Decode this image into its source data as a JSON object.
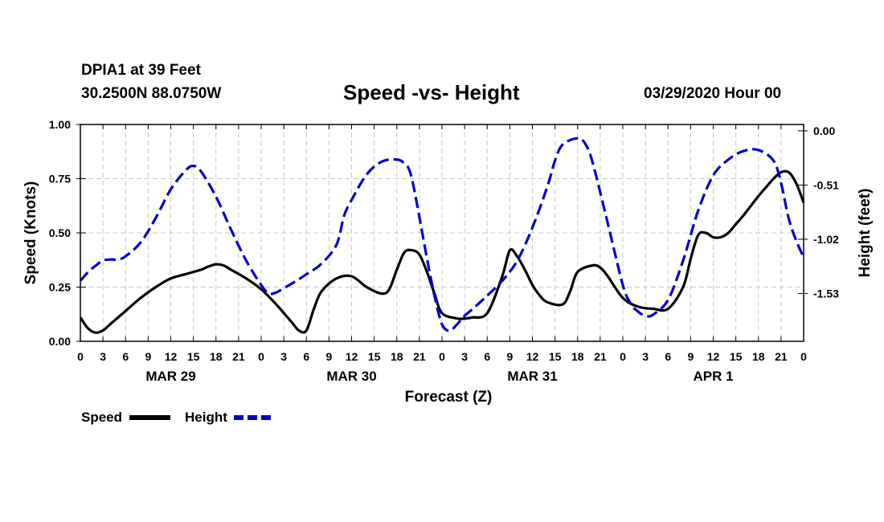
{
  "header": {
    "station": "DPIA1 at 39 Feet",
    "coords": "30.2500N 88.0750W",
    "title": "Speed -vs- Height",
    "run": "03/29/2020 Hour 00"
  },
  "chart_data": {
    "type": "line",
    "title": "Speed -vs- Height",
    "xlabel": "Forecast (Z)",
    "ylabel_left": "Speed (Knots)",
    "ylabel_right": "Height (feet)",
    "x_range_hours": [
      0,
      96
    ],
    "ylim_left": [
      0,
      1
    ],
    "ylim_right": [
      -1.98,
      0.06
    ],
    "left_ticks": [
      "0.00",
      "0.25",
      "0.50",
      "0.75",
      "1.00"
    ],
    "right_ticks": [
      {
        "label": "0.00",
        "value": 0.0
      },
      {
        "label": "-0.51",
        "value": -0.51
      },
      {
        "label": "-1.02",
        "value": -1.02
      },
      {
        "label": "-1.53",
        "value": -1.53
      }
    ],
    "x_tick_labels": [
      "0",
      "3",
      "6",
      "9",
      "12",
      "15",
      "18",
      "21",
      "0",
      "3",
      "6",
      "9",
      "12",
      "15",
      "18",
      "21",
      "0",
      "3",
      "6",
      "9",
      "12",
      "15",
      "18",
      "21",
      "0",
      "3",
      "6",
      "9",
      "12",
      "15",
      "18",
      "21",
      "0"
    ],
    "day_labels": [
      {
        "label": "MAR 29",
        "hour": 12
      },
      {
        "label": "MAR 30",
        "hour": 36
      },
      {
        "label": "MAR 31",
        "hour": 60
      },
      {
        "label": "APR 1",
        "hour": 84
      }
    ],
    "grid": true,
    "legend_position": "bottom-left",
    "series": [
      {
        "name": "Speed",
        "axis": "left",
        "color": "#000000",
        "style": "solid",
        "x": [
          0,
          1,
          2,
          3,
          4,
          6,
          8,
          10,
          12,
          14,
          16,
          17,
          18,
          19,
          20,
          22,
          24,
          26,
          28,
          29,
          30,
          31,
          32,
          34,
          36,
          38,
          40,
          41,
          42,
          43,
          44,
          45,
          46,
          47,
          48,
          50,
          51,
          52,
          54,
          56,
          57,
          58,
          59,
          60,
          61,
          62,
          64,
          65,
          66,
          68,
          69,
          70,
          72,
          74,
          76,
          78,
          80,
          81,
          82,
          83,
          84,
          85,
          86,
          87,
          88,
          90,
          91,
          92,
          93,
          94,
          95,
          96
        ],
        "values": [
          0.11,
          0.06,
          0.04,
          0.05,
          0.08,
          0.14,
          0.2,
          0.25,
          0.29,
          0.31,
          0.33,
          0.345,
          0.355,
          0.35,
          0.33,
          0.29,
          0.24,
          0.17,
          0.09,
          0.05,
          0.05,
          0.15,
          0.23,
          0.29,
          0.3,
          0.25,
          0.22,
          0.24,
          0.33,
          0.41,
          0.42,
          0.4,
          0.32,
          0.22,
          0.13,
          0.105,
          0.105,
          0.11,
          0.13,
          0.3,
          0.42,
          0.39,
          0.33,
          0.26,
          0.21,
          0.18,
          0.17,
          0.23,
          0.32,
          0.35,
          0.34,
          0.3,
          0.2,
          0.16,
          0.15,
          0.15,
          0.25,
          0.38,
          0.49,
          0.5,
          0.48,
          0.48,
          0.5,
          0.54,
          0.58,
          0.67,
          0.71,
          0.75,
          0.78,
          0.78,
          0.73,
          0.64
        ]
      },
      {
        "name": "Height",
        "axis": "right",
        "color": "#0000cc",
        "style": "dashed",
        "x": [
          0,
          1,
          2,
          3,
          4,
          5,
          6,
          8,
          10,
          12,
          14,
          15,
          16,
          18,
          20,
          22,
          24,
          25,
          26,
          27,
          28,
          30,
          32,
          34,
          35,
          36,
          38,
          40,
          42,
          43,
          44,
          46,
          47,
          48,
          49,
          50,
          51,
          52,
          54,
          56,
          58,
          60,
          62,
          63,
          64,
          66,
          67,
          68,
          70,
          72,
          73,
          74,
          75,
          76,
          78,
          80,
          82,
          84,
          86,
          88,
          90,
          92,
          93,
          94,
          95,
          96
        ],
        "values": [
          -1.41,
          -1.33,
          -1.27,
          -1.22,
          -1.21,
          -1.21,
          -1.18,
          -1.05,
          -0.82,
          -0.55,
          -0.37,
          -0.33,
          -0.38,
          -0.62,
          -0.93,
          -1.22,
          -1.45,
          -1.53,
          -1.52,
          -1.48,
          -1.44,
          -1.35,
          -1.25,
          -1.07,
          -0.8,
          -0.65,
          -0.41,
          -0.29,
          -0.27,
          -0.31,
          -0.45,
          -1.2,
          -1.55,
          -1.82,
          -1.88,
          -1.82,
          -1.74,
          -1.68,
          -1.55,
          -1.41,
          -1.22,
          -0.91,
          -0.52,
          -0.28,
          -0.13,
          -0.07,
          -0.12,
          -0.3,
          -0.87,
          -1.45,
          -1.62,
          -1.7,
          -1.74,
          -1.73,
          -1.59,
          -1.22,
          -0.75,
          -0.42,
          -0.27,
          -0.19,
          -0.18,
          -0.28,
          -0.49,
          -0.82,
          -1.03,
          -1.19
        ]
      }
    ]
  },
  "legend": {
    "speed_label": "Speed",
    "height_label": "Height"
  }
}
